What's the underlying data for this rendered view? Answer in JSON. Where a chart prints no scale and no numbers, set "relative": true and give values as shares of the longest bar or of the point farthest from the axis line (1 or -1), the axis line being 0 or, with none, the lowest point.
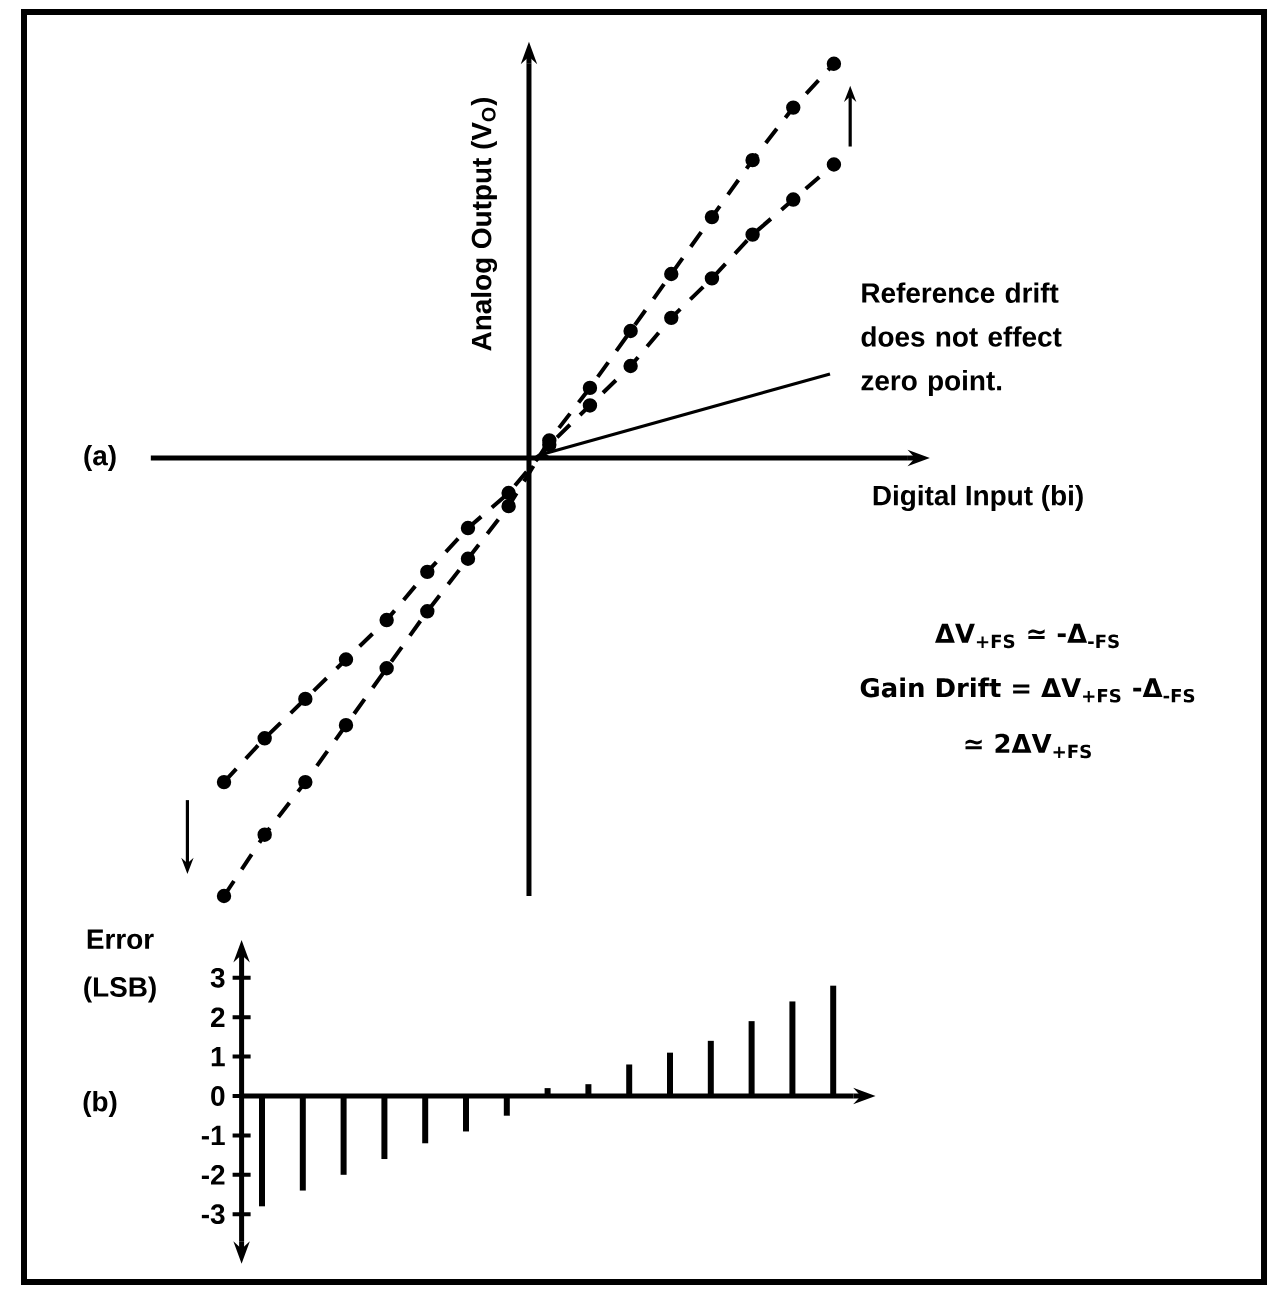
{
  "chart_data": [
    {
      "type": "line",
      "title": "(a)",
      "xlabel": "Digital Input (bi)",
      "ylabel": "Analog Output (V$_{O}$)",
      "categories": [
        null,
        null,
        null,
        null,
        null,
        null,
        null,
        null,
        null,
        null,
        null,
        null,
        null,
        null,
        null,
        null
      ],
      "relative": true,
      "marker": "circle",
      "line_style": "dashed",
      "tick_labels": false,
      "series": [
        {
          "color": "#000000",
          "values": [
            -1,
            -0.86,
            -0.74,
            -0.61,
            -0.48,
            -0.35,
            -0.23,
            -0.11,
            0.04,
            0.16,
            0.29,
            0.42,
            0.55,
            0.68,
            0.8,
            0.9
          ]
        },
        {
          "color": "#000000",
          "values": [
            -0.74,
            -0.64,
            -0.55,
            -0.46,
            -0.37,
            -0.26,
            -0.16,
            -0.08,
            0.03,
            0.12,
            0.21,
            0.32,
            0.41,
            0.51,
            0.59,
            0.67
          ]
        }
      ],
      "annotations": [
        "Reference drift does not effect zero point.",
        "ΔV$_{+FS}$ ≃ -Δ$_{-FS}$",
        "Gain Drift = ΔV$_{+FS}$ -Δ$_{-FS}$",
        "≃ 2ΔV$_{+FS}$"
      ]
    },
    {
      "type": "bar",
      "title": "(b)",
      "ylabel": "Error (LSB)",
      "categories": [
        null,
        null,
        null,
        null,
        null,
        null,
        null,
        null,
        null,
        null,
        null,
        null,
        null,
        null,
        null
      ],
      "values": [
        -2.8,
        -2.4,
        -2,
        -1.6,
        -1.2,
        -0.9,
        -0.5,
        0.2,
        0.3,
        0.8,
        1.1,
        1.4,
        1.9,
        2.4,
        2.8
      ],
      "color": "#000000",
      "ylim": [
        -3.7,
        3.4
      ],
      "yticks": [
        -3,
        -2,
        -1,
        0,
        1,
        2,
        3
      ],
      "tick_labels": "y"
    }
  ]
}
